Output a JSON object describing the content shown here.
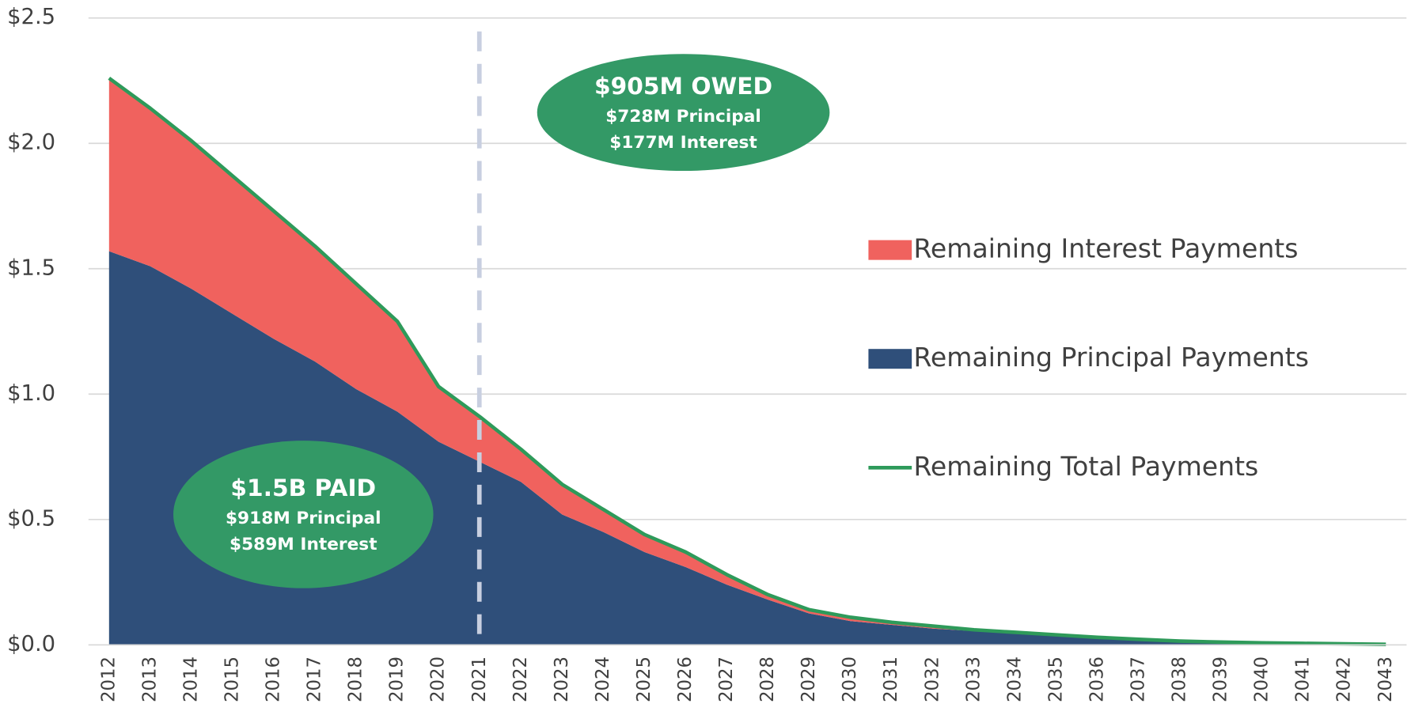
{
  "chart_data": {
    "type": "stacked-area-line",
    "categories": [
      "2012",
      "2013",
      "2014",
      "2015",
      "2016",
      "2017",
      "2018",
      "2019",
      "2020",
      "2021",
      "2022",
      "2023",
      "2024",
      "2025",
      "2026",
      "2027",
      "2028",
      "2029",
      "2030",
      "2031",
      "2032",
      "2033",
      "2034",
      "2035",
      "2036",
      "2037",
      "2038",
      "2039",
      "2040",
      "2041",
      "2042",
      "2043"
    ],
    "series": [
      {
        "name": "Remaining Interest Payments",
        "color": "#f0625e",
        "kind": "area",
        "values": [
          0.69,
          0.63,
          0.59,
          0.55,
          0.51,
          0.46,
          0.42,
          0.36,
          0.22,
          0.18,
          0.13,
          0.12,
          0.09,
          0.07,
          0.06,
          0.04,
          0.02,
          0.015,
          0.015,
          0.01,
          0.01,
          0.005,
          0.005,
          0.005,
          0.005,
          0.004,
          0.003,
          0.002,
          0.001,
          0.001,
          0.001,
          0.001
        ]
      },
      {
        "name": "Remaining Principal Payments",
        "color": "#2f4f7a",
        "kind": "area",
        "values": [
          1.57,
          1.51,
          1.42,
          1.32,
          1.22,
          1.13,
          1.02,
          0.93,
          0.81,
          0.73,
          0.65,
          0.52,
          0.45,
          0.37,
          0.31,
          0.24,
          0.18,
          0.125,
          0.095,
          0.08,
          0.065,
          0.055,
          0.045,
          0.035,
          0.025,
          0.018,
          0.012,
          0.009,
          0.007,
          0.005,
          0.003,
          0.001
        ]
      },
      {
        "name": "Remaining Total Payments",
        "color": "#2e9a5a",
        "kind": "line",
        "values": [
          2.26,
          2.14,
          2.01,
          1.87,
          1.73,
          1.59,
          1.44,
          1.29,
          1.03,
          0.91,
          0.78,
          0.64,
          0.54,
          0.44,
          0.37,
          0.28,
          0.2,
          0.14,
          0.11,
          0.09,
          0.075,
          0.06,
          0.05,
          0.04,
          0.03,
          0.022,
          0.015,
          0.011,
          0.008,
          0.006,
          0.004,
          0.002
        ]
      }
    ],
    "ylim": [
      0,
      2.5
    ],
    "yticks": [
      {
        "value": 0,
        "label": "$0.0"
      },
      {
        "value": 0.5,
        "label": "$0.5"
      },
      {
        "value": 1,
        "label": "$1.0"
      },
      {
        "value": 1.5,
        "label": "$1.5"
      },
      {
        "value": 2,
        "label": "$2.0"
      },
      {
        "value": 2.5,
        "label": "$2.5"
      }
    ],
    "grid": true,
    "legend": "right",
    "annotations": [
      {
        "title": "$905M OWED",
        "lines": [
          "$728M Principal",
          "$177M Interest"
        ]
      },
      {
        "title": "$1.5B PAID",
        "lines": [
          "$918M Principal",
          "$589M Interest"
        ]
      }
    ]
  }
}
